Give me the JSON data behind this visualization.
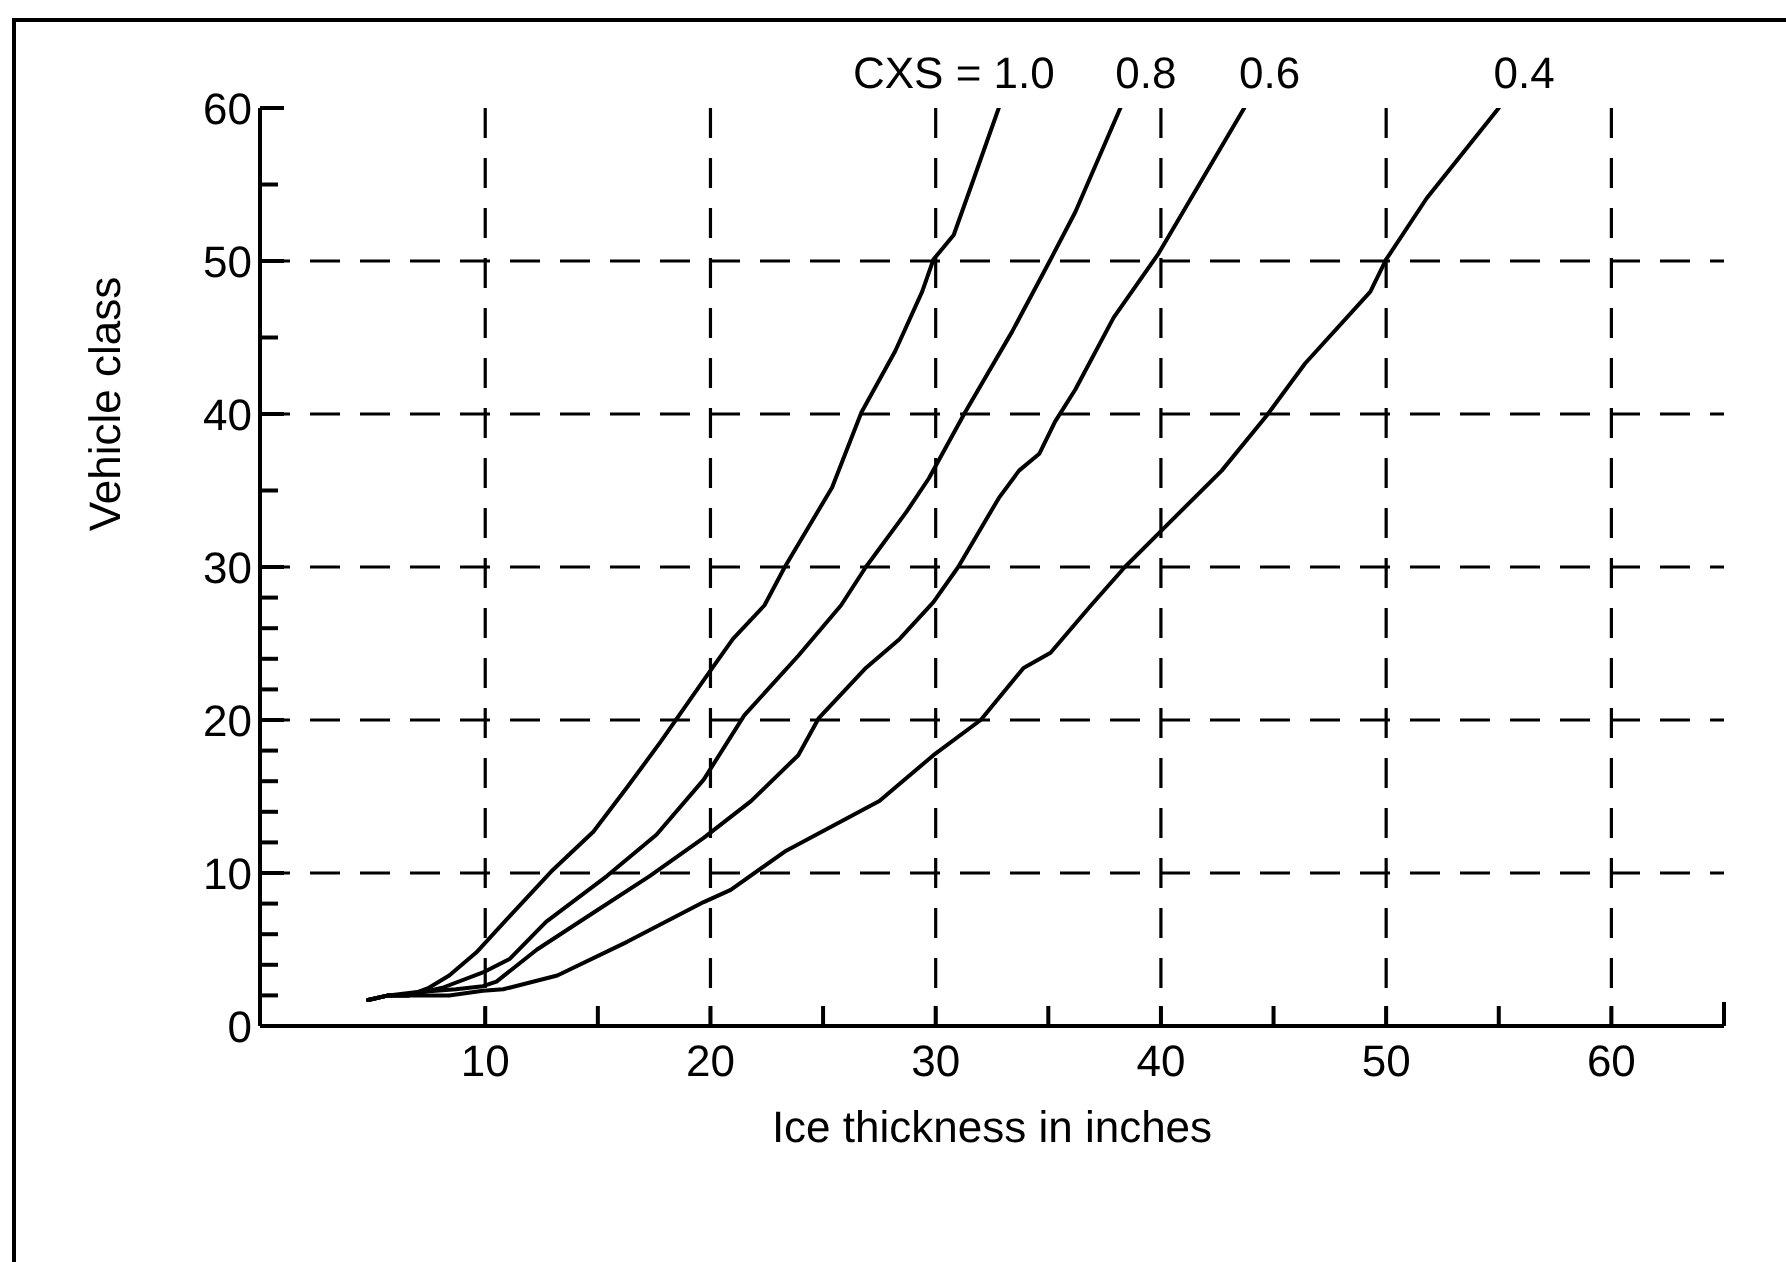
{
  "chart_data": {
    "type": "line",
    "xlabel": "Ice thickness in inches",
    "ylabel": "Vehicle class",
    "xlim": [
      0,
      65
    ],
    "xticks": [
      10,
      {
        "value": 15,
        "label": null
      },
      20,
      {
        "value": 25,
        "label": null
      },
      30,
      {
        "value": 35,
        "label": null
      },
      40,
      {
        "value": 45,
        "label": null
      },
      50,
      {
        "value": 55,
        "label": null
      },
      60,
      {
        "value": 65,
        "label": null
      }
    ],
    "ylim": [
      0,
      60
    ],
    "yticks": [
      0,
      {
        "value": 2,
        "label": null
      },
      {
        "value": 4,
        "label": null
      },
      {
        "value": 6,
        "label": null
      },
      {
        "value": 8,
        "label": null
      },
      10,
      {
        "value": 12,
        "label": null
      },
      {
        "value": 14,
        "label": null
      },
      {
        "value": 16,
        "label": null
      },
      {
        "value": 18,
        "label": null
      },
      20,
      {
        "value": 22,
        "label": null
      },
      {
        "value": 24,
        "label": null
      },
      {
        "value": 26,
        "label": null
      },
      {
        "value": 28,
        "label": null
      },
      30,
      {
        "value": 35,
        "label": null
      },
      40,
      {
        "value": 45,
        "label": null
      },
      50,
      {
        "value": 55,
        "label": null
      },
      60
    ],
    "grid": true,
    "series": [
      {
        "name": "CXS = 1.0",
        "color": "#000000",
        "x": [
          4.8,
          5.7,
          6.6,
          7.5,
          8.4,
          9.6,
          11.1,
          13.0,
          14.8,
          16.3,
          17.8,
          19.7,
          21.0,
          22.4,
          23.3,
          25.4,
          26.7,
          28.2,
          29.4,
          29.9,
          30.8,
          31.6,
          32.8
        ],
        "values": [
          1.7,
          2.0,
          2.0,
          2.5,
          3.3,
          4.8,
          7.2,
          10.2,
          12.7,
          15.6,
          18.6,
          22.6,
          25.3,
          27.5,
          30.0,
          35.2,
          40.1,
          44.1,
          48.0,
          50.1,
          51.7,
          55.0,
          60.0
        ]
      },
      {
        "name": "0.8",
        "color": "#000000",
        "x": [
          4.8,
          5.7,
          6.6,
          8.1,
          9.9,
          11.1,
          12.7,
          15.4,
          17.6,
          19.7,
          21.5,
          23.9,
          25.8,
          26.9,
          28.7,
          29.7,
          31.3,
          33.4,
          35.1,
          36.2,
          38.2
        ],
        "values": [
          1.7,
          2.0,
          2.0,
          2.5,
          3.5,
          4.4,
          6.8,
          9.8,
          12.5,
          16.1,
          20.3,
          24.2,
          27.5,
          30.0,
          33.6,
          35.8,
          40.1,
          45.4,
          50.1,
          53.2,
          60.0
        ]
      },
      {
        "name": "0.6",
        "color": "#000000",
        "x": [
          4.8,
          5.7,
          6.9,
          8.7,
          9.9,
          10.5,
          12.3,
          14.8,
          17.3,
          19.7,
          21.8,
          23.9,
          24.8,
          26.9,
          28.4,
          29.9,
          31.0,
          32.8,
          33.7,
          34.6,
          35.3,
          36.2,
          37.9,
          39.9,
          43.7
        ],
        "values": [
          1.7,
          2.0,
          2.2,
          2.4,
          2.6,
          2.9,
          5.0,
          7.4,
          9.8,
          12.3,
          14.7,
          17.7,
          20.1,
          23.4,
          25.3,
          27.7,
          30.0,
          34.5,
          36.3,
          37.4,
          39.5,
          41.6,
          46.3,
          50.5,
          60.0
        ]
      },
      {
        "name": "0.4",
        "color": "#000000",
        "x": [
          4.8,
          5.7,
          6.6,
          8.4,
          9.9,
          10.8,
          13.2,
          16.3,
          19.7,
          20.9,
          23.3,
          27.5,
          29.9,
          32.0,
          33.9,
          35.1,
          36.9,
          38.4,
          39.9,
          42.7,
          44.7,
          46.4,
          49.3,
          50.0,
          51.8,
          55.0
        ],
        "values": [
          1.7,
          2.0,
          2.0,
          2.0,
          2.3,
          2.4,
          3.3,
          5.5,
          8.1,
          8.9,
          11.4,
          14.7,
          17.7,
          20.0,
          23.4,
          24.4,
          27.5,
          30.0,
          32.2,
          36.3,
          39.9,
          43.3,
          48.0,
          50.1,
          54.1,
          60.0
        ]
      }
    ]
  }
}
